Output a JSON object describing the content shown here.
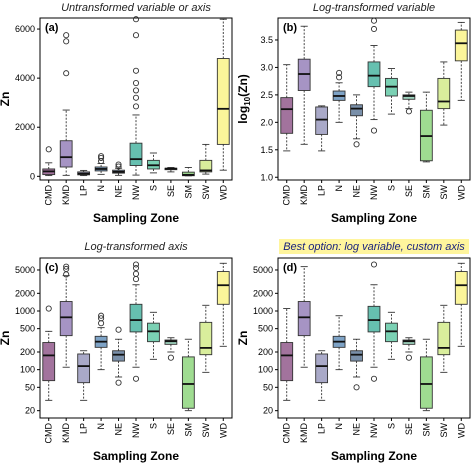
{
  "figure": {
    "colors": {
      "CMD": "#a2739d",
      "KMD": "#a694c4",
      "LP": "#a9a9c8",
      "N": "#7ea3c6",
      "NE": "#7a90aa",
      "NW": "#66c0b0",
      "S": "#7bd1b4",
      "SE": "#9fd4bf",
      "SM": "#9fdc91",
      "SW": "#d9ee9c",
      "WD": "#fbf59a",
      "highlight_bg": "#fff59d",
      "highlight_text": "#1a237e"
    }
  },
  "chart_data": [
    {
      "type": "box",
      "panel_label": "(a)",
      "title": "Untransformed variable or axis",
      "xlabel": "Sampling Zone",
      "ylabel": "Zn",
      "scale": "linear",
      "ylim": [
        -150,
        6450
      ],
      "yticks": [
        0,
        2000,
        4000,
        6000
      ],
      "ytick_labels": [
        "0",
        "2000",
        "4000",
        "6000"
      ],
      "categories": [
        "CMD",
        "KMD",
        "LP",
        "N",
        "NE",
        "NW",
        "S",
        "SE",
        "SM",
        "SW",
        "WD"
      ],
      "boxes": [
        {
          "min": 30,
          "q1": 70,
          "median": 200,
          "q3": 300,
          "max": 550,
          "outliers": [
            1100
          ]
        },
        {
          "min": 40,
          "q1": 380,
          "median": 780,
          "q3": 1450,
          "max": 2700,
          "outliers": [
            4200,
            5500,
            5750
          ]
        },
        {
          "min": 30,
          "q1": 60,
          "median": 110,
          "q3": 180,
          "max": 240,
          "outliers": []
        },
        {
          "min": 80,
          "q1": 220,
          "median": 300,
          "q3": 380,
          "max": 520,
          "outliers": [
            620,
            750,
            820
          ]
        },
        {
          "min": 40,
          "q1": 130,
          "median": 180,
          "q3": 250,
          "max": 330,
          "outliers": [
            400,
            480
          ]
        },
        {
          "min": 50,
          "q1": 440,
          "median": 700,
          "q3": 1350,
          "max": 2500,
          "outliers": [
            2850,
            3200,
            3500,
            3800,
            4300,
            5750,
            6400
          ]
        },
        {
          "min": 140,
          "q1": 300,
          "median": 450,
          "q3": 650,
          "max": 950,
          "outliers": []
        },
        {
          "min": 180,
          "q1": 270,
          "median": 310,
          "q3": 330,
          "max": 360,
          "outliers": []
        },
        {
          "min": 20,
          "q1": 25,
          "median": 60,
          "q3": 170,
          "max": 360,
          "outliers": []
        },
        {
          "min": 90,
          "q1": 180,
          "median": 240,
          "q3": 650,
          "max": 1300,
          "outliers": []
        },
        {
          "min": 250,
          "q1": 1300,
          "median": 2750,
          "q3": 4800,
          "max": 6400,
          "outliers": []
        }
      ]
    },
    {
      "type": "box",
      "panel_label": "(b)",
      "title": "Log-transformed variable",
      "xlabel": "Sampling Zone",
      "ylabel": "log10(Zn)",
      "ylabel_parts": {
        "base": "log",
        "sub": "10",
        "rest": "(Zn)"
      },
      "scale": "linear",
      "ylim": [
        0.95,
        3.9
      ],
      "yticks": [
        1.0,
        1.5,
        2.0,
        2.5,
        3.0,
        3.5
      ],
      "ytick_labels": [
        "1.0",
        "1.5",
        "2.0",
        "2.5",
        "3.0",
        "3.5"
      ],
      "categories": [
        "CMD",
        "KMD",
        "LP",
        "N",
        "NE",
        "NW",
        "S",
        "SE",
        "SM",
        "SW",
        "WD"
      ],
      "boxes": [
        {
          "min": 1.48,
          "q1": 1.8,
          "median": 2.24,
          "q3": 2.45,
          "max": 3.05,
          "outliers": []
        },
        {
          "min": 1.6,
          "q1": 2.58,
          "median": 2.88,
          "q3": 3.15,
          "max": 3.75,
          "outliers": []
        },
        {
          "min": 1.48,
          "q1": 1.78,
          "median": 2.05,
          "q3": 2.28,
          "max": 2.3,
          "outliers": []
        },
        {
          "min": 2.0,
          "q1": 2.4,
          "median": 2.48,
          "q3": 2.57,
          "max": 2.72,
          "outliers": [
            2.82,
            2.9
          ]
        },
        {
          "min": 1.7,
          "q1": 2.12,
          "median": 2.25,
          "q3": 2.32,
          "max": 2.5,
          "outliers": [
            1.6
          ]
        },
        {
          "min": 2.05,
          "q1": 2.65,
          "median": 2.85,
          "q3": 3.1,
          "max": 3.4,
          "outliers": [
            1.85,
            3.7,
            3.85
          ]
        },
        {
          "min": 2.15,
          "q1": 2.48,
          "median": 2.65,
          "q3": 2.8,
          "max": 2.98,
          "outliers": []
        },
        {
          "min": 2.25,
          "q1": 2.42,
          "median": 2.48,
          "q3": 2.5,
          "max": 2.55,
          "outliers": [
            2.2
          ]
        },
        {
          "min": 1.28,
          "q1": 1.3,
          "median": 1.75,
          "q3": 2.22,
          "max": 2.55,
          "outliers": []
        },
        {
          "min": 1.95,
          "q1": 2.25,
          "median": 2.38,
          "q3": 2.8,
          "max": 3.1,
          "outliers": []
        },
        {
          "min": 2.4,
          "q1": 3.12,
          "median": 3.44,
          "q3": 3.68,
          "max": 3.82,
          "outliers": []
        }
      ]
    },
    {
      "type": "box",
      "panel_label": "(c)",
      "title": "Log-transformed axis",
      "xlabel": "Sampling Zone",
      "ylabel": "Zn",
      "scale": "log",
      "ylim": [
        15,
        8000
      ],
      "yticks": [
        20,
        50,
        100,
        200,
        500,
        1000,
        2000,
        5000
      ],
      "ytick_labels": [
        "20",
        "50",
        "100",
        "200",
        "500",
        "1000",
        "2000",
        "5000"
      ],
      "categories": [
        "CMD",
        "KMD",
        "LP",
        "N",
        "NE",
        "NW",
        "S",
        "SE",
        "SM",
        "SW",
        "WD"
      ],
      "boxes": [
        {
          "min": 30,
          "q1": 65,
          "median": 175,
          "q3": 290,
          "max": 450,
          "outliers": [
            1100
          ]
        },
        {
          "min": 110,
          "q1": 380,
          "median": 780,
          "q3": 1450,
          "max": 4000,
          "outliers": [
            4200,
            5200,
            5700
          ]
        },
        {
          "min": 30,
          "q1": 60,
          "median": 115,
          "q3": 185,
          "max": 210,
          "outliers": []
        },
        {
          "min": 100,
          "q1": 240,
          "median": 300,
          "q3": 370,
          "max": 520,
          "outliers": [
            620,
            750,
            830
          ]
        },
        {
          "min": 75,
          "q1": 140,
          "median": 180,
          "q3": 210,
          "max": 330,
          "outliers": [
            60,
            480
          ]
        },
        {
          "min": 110,
          "q1": 440,
          "median": 700,
          "q3": 1300,
          "max": 2800,
          "outliers": [
            3500,
            4300,
            5400,
            6200,
            70
          ]
        },
        {
          "min": 150,
          "q1": 300,
          "median": 450,
          "q3": 620,
          "max": 950,
          "outliers": []
        },
        {
          "min": 200,
          "q1": 270,
          "median": 305,
          "q3": 320,
          "max": 350,
          "outliers": [
            160
          ]
        },
        {
          "min": 20,
          "q1": 22,
          "median": 57,
          "q3": 165,
          "max": 330,
          "outliers": []
        },
        {
          "min": 90,
          "q1": 180,
          "median": 235,
          "q3": 640,
          "max": 1250,
          "outliers": []
        },
        {
          "min": 250,
          "q1": 1300,
          "median": 2750,
          "q3": 4700,
          "max": 6500,
          "outliers": []
        }
      ]
    },
    {
      "type": "box",
      "panel_label": "(d)",
      "title": "Best option: log variable, custom axis",
      "title_highlighted": true,
      "xlabel": "Sampling Zone",
      "ylabel": "Zn",
      "scale": "log",
      "ylim": [
        15,
        8000
      ],
      "yticks": [
        20,
        50,
        100,
        200,
        500,
        1000,
        2000,
        5000
      ],
      "ytick_labels": [
        "20",
        "50",
        "100",
        "200",
        "500",
        "1000",
        "2000",
        "5000"
      ],
      "categories": [
        "CMD",
        "KMD",
        "LP",
        "N",
        "NE",
        "NW",
        "S",
        "SE",
        "SM",
        "SW",
        "WD"
      ],
      "boxes": [
        {
          "min": 30,
          "q1": 65,
          "median": 175,
          "q3": 290,
          "max": 1100,
          "outliers": []
        },
        {
          "min": 110,
          "q1": 380,
          "median": 780,
          "q3": 1450,
          "max": 5700,
          "outliers": []
        },
        {
          "min": 30,
          "q1": 60,
          "median": 115,
          "q3": 185,
          "max": 210,
          "outliers": []
        },
        {
          "min": 100,
          "q1": 240,
          "median": 300,
          "q3": 370,
          "max": 830,
          "outliers": []
        },
        {
          "min": 75,
          "q1": 140,
          "median": 180,
          "q3": 210,
          "max": 330,
          "outliers": [
            50
          ]
        },
        {
          "min": 110,
          "q1": 440,
          "median": 700,
          "q3": 1200,
          "max": 2800,
          "outliers": [
            70,
            6200
          ]
        },
        {
          "min": 150,
          "q1": 300,
          "median": 450,
          "q3": 620,
          "max": 950,
          "outliers": []
        },
        {
          "min": 200,
          "q1": 270,
          "median": 305,
          "q3": 320,
          "max": 350,
          "outliers": [
            160
          ]
        },
        {
          "min": 20,
          "q1": 22,
          "median": 57,
          "q3": 165,
          "max": 330,
          "outliers": []
        },
        {
          "min": 90,
          "q1": 180,
          "median": 235,
          "q3": 640,
          "max": 1250,
          "outliers": []
        },
        {
          "min": 250,
          "q1": 1300,
          "median": 2750,
          "q3": 4700,
          "max": 6500,
          "outliers": []
        }
      ]
    }
  ]
}
